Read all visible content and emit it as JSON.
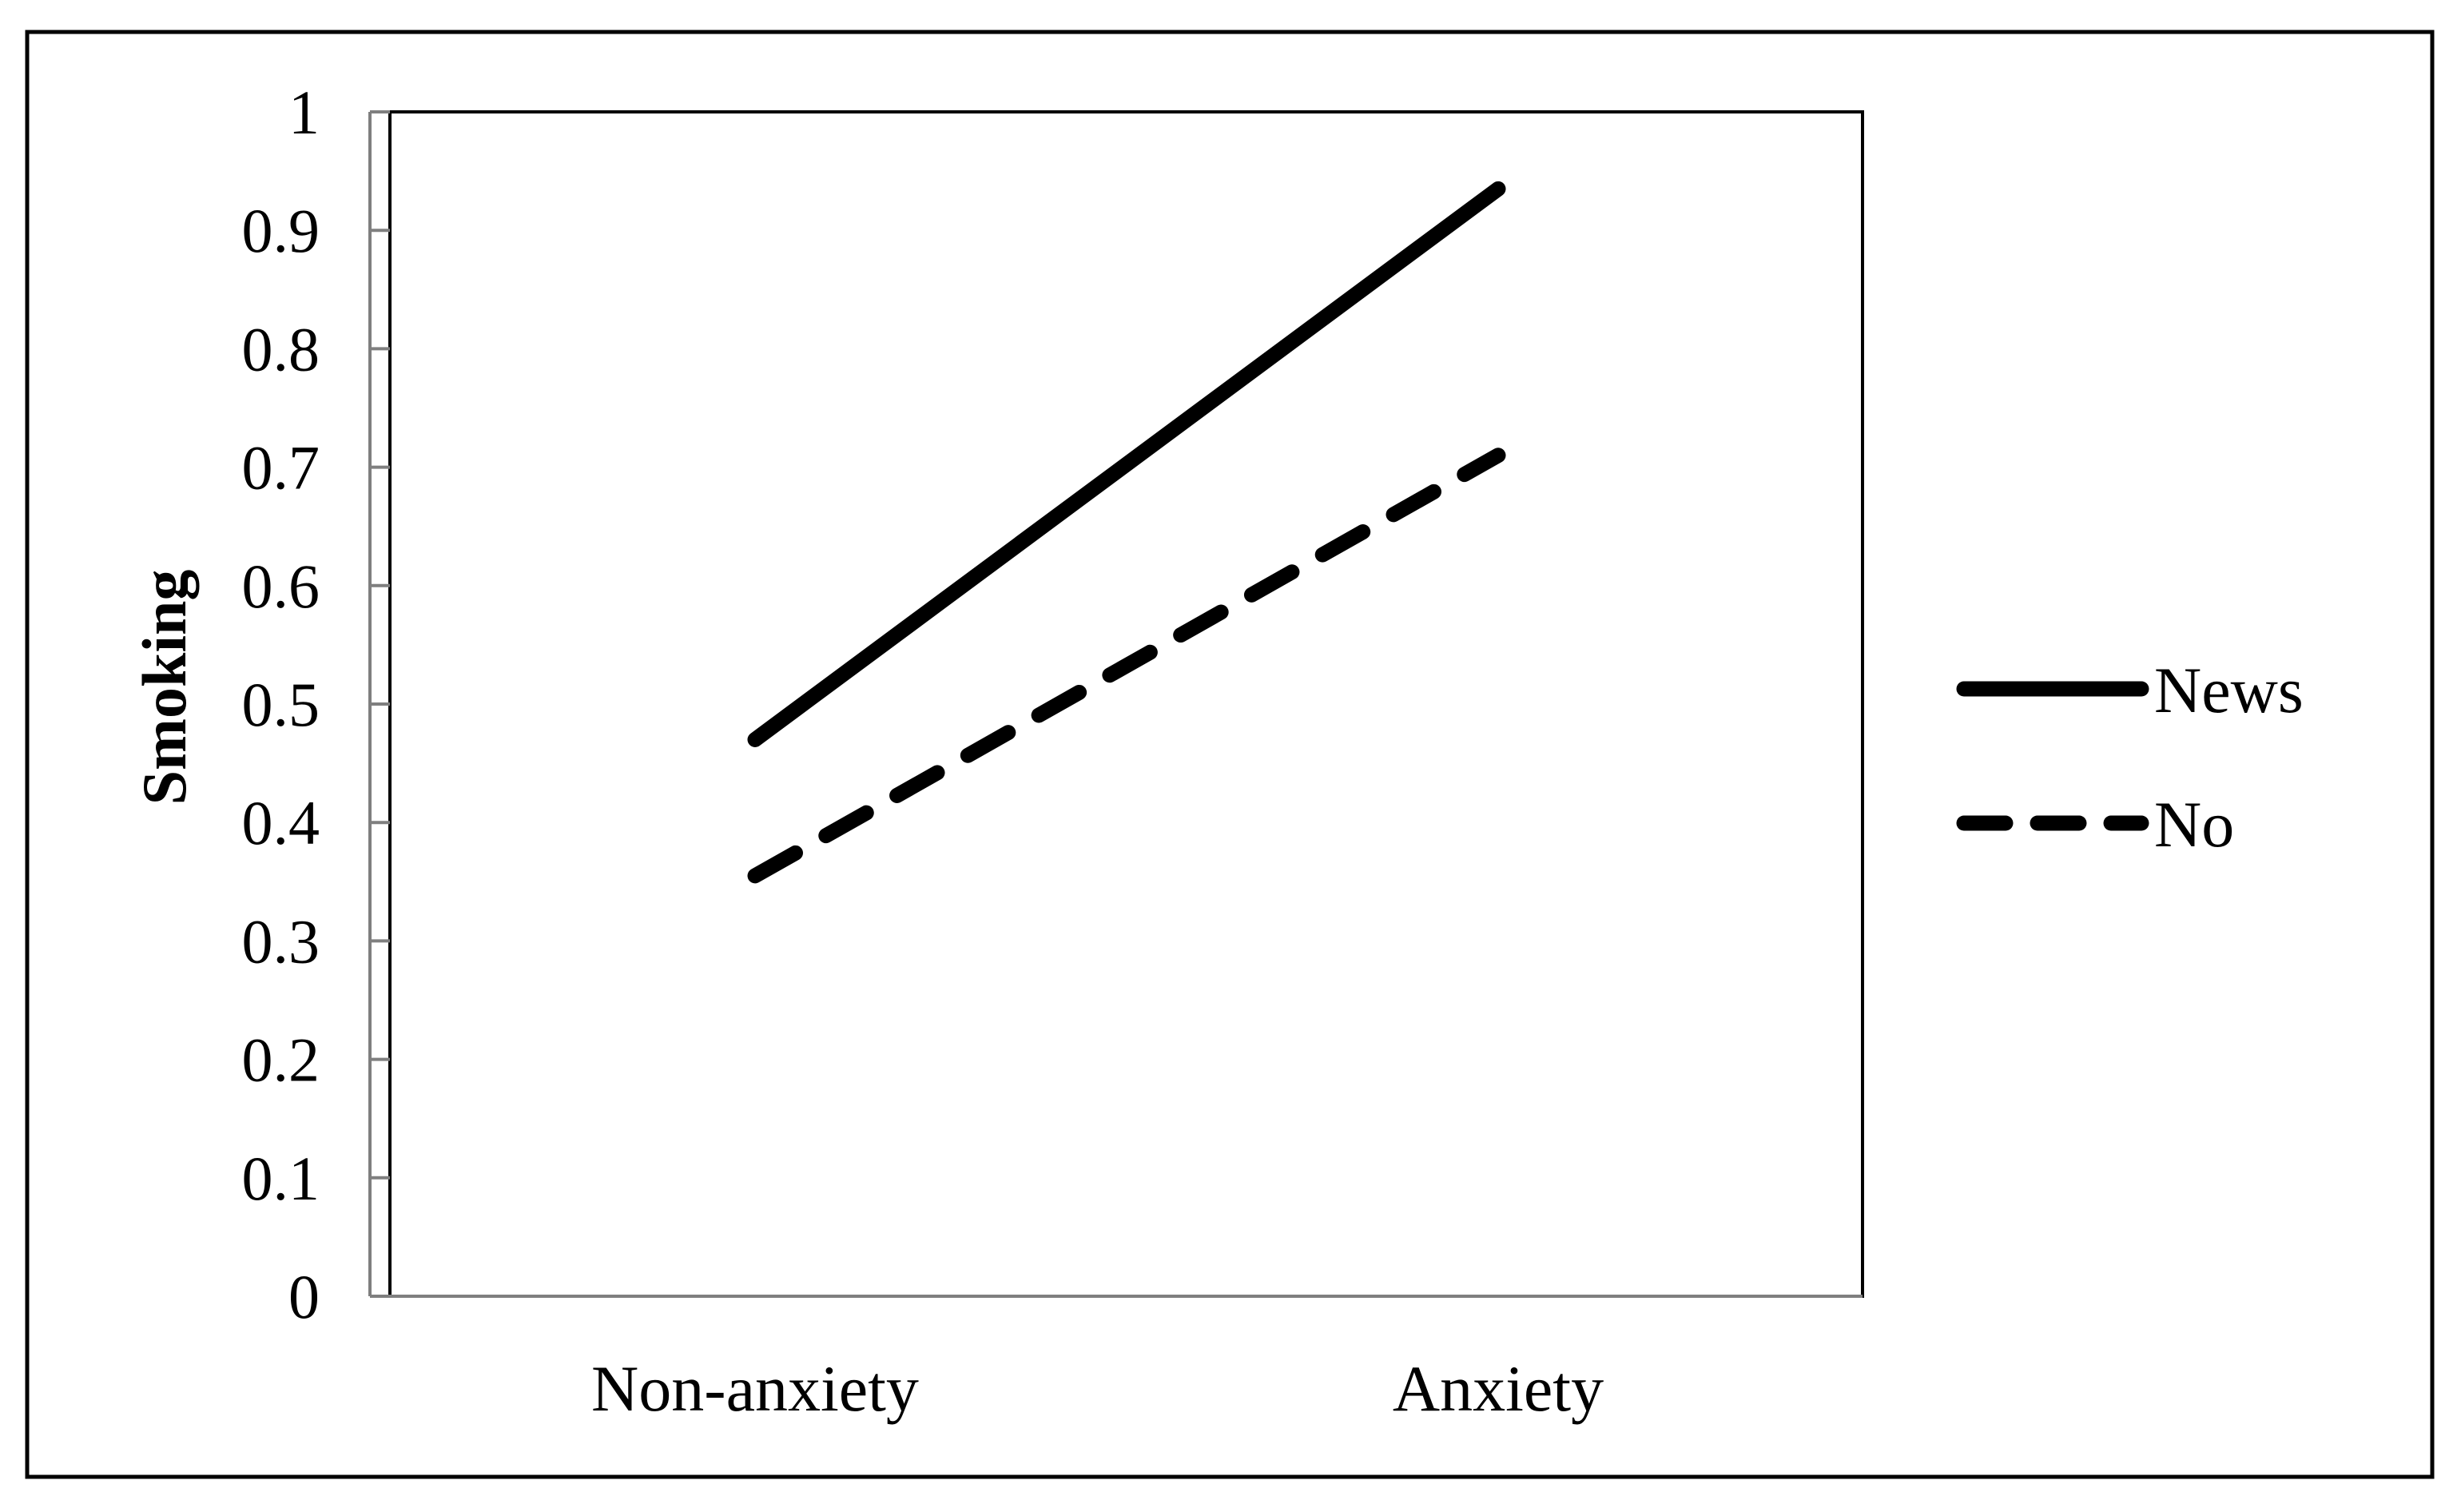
{
  "chart_data": {
    "type": "line",
    "title": "",
    "xlabel": "",
    "ylabel": "Smoking",
    "categories": [
      "Non-anxiety",
      "Anxiety"
    ],
    "series": [
      {
        "name": "News",
        "values": [
          0.47,
          0.935
        ],
        "line_style": "solid",
        "color": "#000000"
      },
      {
        "name": "No",
        "values": [
          0.355,
          0.71
        ],
        "line_style": "dashed",
        "color": "#000000"
      }
    ],
    "ylim": [
      0,
      1
    ],
    "yticks": [
      "0",
      "0.1",
      "0.2",
      "0.3",
      "0.4",
      "0.5",
      "0.6",
      "0.7",
      "0.8",
      "0.9",
      "1"
    ],
    "grid": false,
    "legend_position": "right"
  }
}
